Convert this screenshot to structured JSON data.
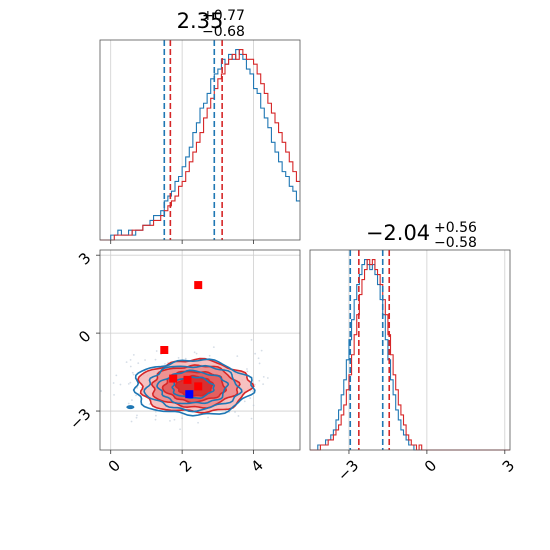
{
  "colors": {
    "blue": "#1f77b4",
    "red": "#d62728",
    "marker_red": "#ff0000",
    "marker_blue": "#0000ff"
  },
  "chart_data": [
    {
      "type": "histogram",
      "panel": "top-left",
      "title": {
        "value": "2.35",
        "plus": "+0.77",
        "minus": "−0.68"
      },
      "xlim": [
        -0.3,
        5.3
      ],
      "x_ticks": [
        0,
        2,
        4
      ],
      "grid": true,
      "bins_start": -0.3,
      "bin_width": 0.1,
      "series": [
        {
          "name": "",
          "color": "blue",
          "counts": [
            0,
            0,
            0,
            1,
            1,
            2,
            1,
            1,
            2,
            1,
            2,
            2,
            3,
            3,
            4,
            5,
            5,
            6,
            8,
            9,
            10,
            12,
            13,
            15,
            17,
            19,
            22,
            24,
            27,
            28,
            30,
            33,
            34,
            35,
            37,
            36,
            38,
            37,
            39,
            38,
            37,
            35,
            34,
            31,
            30,
            27,
            25,
            23,
            20,
            18,
            16,
            14,
            13,
            11,
            10,
            8,
            7,
            6,
            5,
            5,
            4,
            3,
            3,
            2,
            2,
            1,
            1,
            1,
            1,
            0,
            1,
            0,
            0,
            0,
            0,
            0,
            0,
            0,
            0,
            0,
            0,
            0,
            0,
            0,
            0,
            0,
            0,
            0,
            0,
            0,
            0,
            0,
            0,
            0,
            0,
            0,
            0,
            0,
            0,
            0,
            0,
            0,
            0,
            0,
            0,
            0,
            0,
            0,
            0,
            0,
            0,
            0,
            0,
            0,
            0,
            0,
            0,
            0,
            0,
            0,
            0,
            0,
            0,
            0,
            0,
            0,
            0
          ],
          "quantile_lines": [
            1.5,
            2.9
          ]
        },
        {
          "name": "",
          "color": "red",
          "counts": [
            0,
            0,
            0,
            0,
            1,
            1,
            1,
            1,
            1,
            2,
            2,
            2,
            3,
            3,
            3,
            4,
            4,
            5,
            6,
            7,
            8,
            9,
            11,
            12,
            14,
            16,
            18,
            20,
            22,
            25,
            27,
            29,
            31,
            33,
            34,
            36,
            37,
            38,
            37,
            39,
            38,
            37,
            37,
            36,
            34,
            32,
            30,
            28,
            26,
            24,
            22,
            20,
            18,
            16,
            14,
            12,
            11,
            10,
            9,
            8,
            7,
            6,
            5,
            5,
            4,
            3,
            3,
            2,
            2,
            2,
            1,
            1,
            1,
            1,
            1,
            0,
            1,
            0,
            0,
            0,
            1,
            0,
            0,
            0,
            0,
            0,
            0,
            0,
            0,
            0,
            0,
            0,
            0,
            0,
            0,
            0,
            0,
            0,
            0,
            0,
            0,
            0,
            0,
            0,
            0,
            0,
            0,
            0,
            0,
            0,
            0,
            0,
            0,
            0,
            0,
            0,
            0,
            0,
            0,
            0,
            0,
            0,
            0,
            0,
            0,
            0,
            0
          ],
          "quantile_lines": [
            1.67,
            3.12
          ]
        }
      ]
    },
    {
      "type": "histogram",
      "panel": "bottom-right",
      "title": {
        "value": "−2.04",
        "plus": "+0.56",
        "minus": "−0.58"
      },
      "xlim": [
        -4.5,
        3.2
      ],
      "x_ticks": [
        -3,
        0,
        3
      ],
      "grid": true,
      "bins_start": -4.5,
      "bin_width": 0.1,
      "series": [
        {
          "name": "",
          "color": "blue",
          "counts": [
            0,
            0,
            0,
            1,
            1,
            1,
            2,
            2,
            3,
            4,
            6,
            8,
            11,
            14,
            18,
            22,
            26,
            30,
            33,
            35,
            37,
            38,
            37,
            36,
            37,
            35,
            33,
            30,
            27,
            22,
            18,
            14,
            11,
            8,
            6,
            4,
            3,
            2,
            1,
            1,
            0,
            0,
            0,
            0,
            0,
            0,
            0,
            0,
            0,
            0,
            0,
            0,
            0,
            0,
            0,
            0,
            0,
            0,
            0,
            0,
            0,
            0,
            0,
            0,
            0,
            0,
            0,
            0,
            0,
            0,
            0,
            0,
            0,
            0,
            0,
            0,
            0
          ],
          "quantile_lines": [
            -2.95,
            -1.7
          ]
        },
        {
          "name": "",
          "color": "red",
          "counts": [
            0,
            0,
            0,
            0,
            1,
            1,
            1,
            2,
            2,
            3,
            4,
            5,
            7,
            9,
            12,
            15,
            19,
            23,
            27,
            31,
            34,
            36,
            38,
            37,
            38,
            36,
            35,
            33,
            30,
            27,
            23,
            19,
            15,
            12,
            9,
            7,
            5,
            3,
            2,
            1,
            1,
            0,
            1,
            0,
            0,
            0,
            0,
            0,
            0,
            0,
            0,
            0,
            0,
            0,
            0,
            0,
            0,
            0,
            0,
            0,
            0,
            0,
            0,
            0,
            0,
            0,
            0,
            0,
            0,
            0,
            0,
            0,
            0,
            0,
            0,
            0,
            0
          ],
          "quantile_lines": [
            -2.62,
            -1.45
          ]
        }
      ]
    },
    {
      "type": "scatter",
      "panel": "bottom-left",
      "xlim": [
        -0.3,
        5.3
      ],
      "ylim": [
        -4.5,
        3.2
      ],
      "x_ticks": [
        0,
        2,
        4
      ],
      "y_ticks": [
        -3,
        0,
        3
      ],
      "grid": true,
      "contours": {
        "blue": {
          "center": [
            2.3,
            -2.1
          ],
          "radii": [
            [
              3.3,
              1.05
            ],
            [
              2.6,
              0.85
            ],
            [
              1.9,
              0.62
            ],
            [
              1.15,
              0.4
            ]
          ],
          "fill": false
        },
        "red": {
          "center": [
            2.35,
            -2.05
          ],
          "radii": [
            [
              3.1,
              1.0
            ],
            [
              2.4,
              0.8
            ],
            [
              1.7,
              0.58
            ],
            [
              1.0,
              0.38
            ]
          ],
          "fill": true
        }
      },
      "points": [
        {
          "color": "marker_red",
          "x": 2.45,
          "y": 1.85
        },
        {
          "color": "marker_red",
          "x": 1.5,
          "y": -0.65
        },
        {
          "color": "marker_red",
          "x": 1.75,
          "y": -1.75
        },
        {
          "color": "marker_red",
          "x": 2.15,
          "y": -1.8
        },
        {
          "color": "marker_red",
          "x": 2.45,
          "y": -2.05
        },
        {
          "color": "marker_blue",
          "x": 2.2,
          "y": -2.35
        }
      ]
    }
  ]
}
